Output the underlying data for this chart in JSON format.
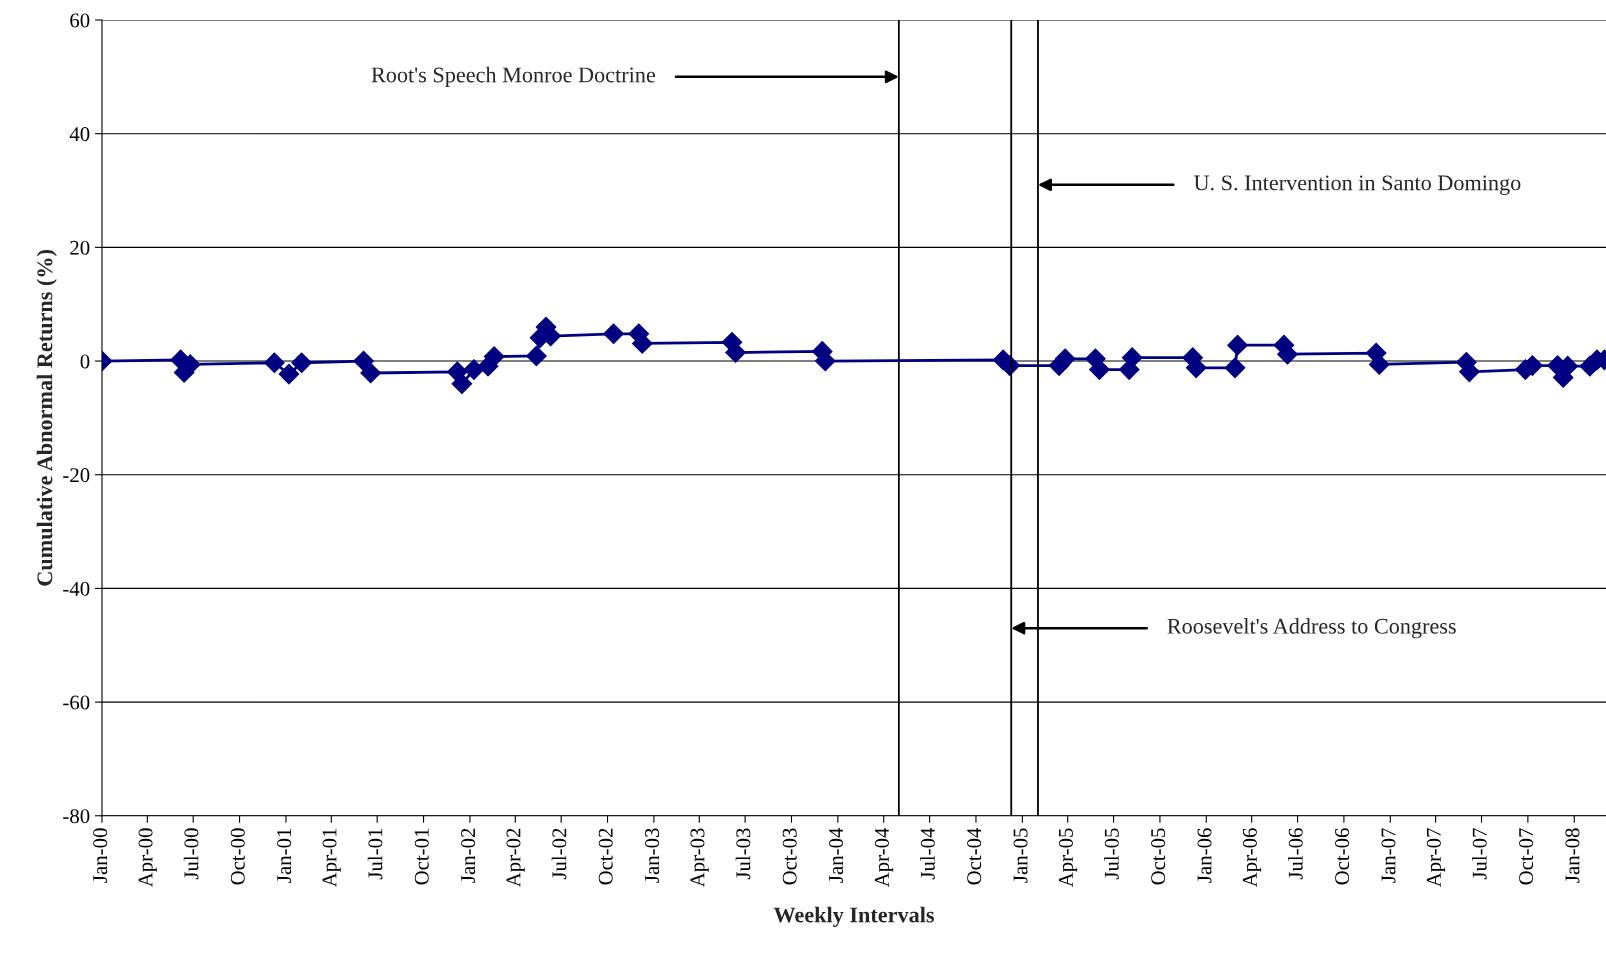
{
  "chart_data": {
    "type": "line",
    "xlabel": "Weekly Intervals",
    "ylabel": "Cumulative Abnormal Returns (%)",
    "x": [
      "1900-01-01",
      "1900-06-06",
      "1900-06-13",
      "1900-06-25",
      "1900-12-09",
      "1901-01-07",
      "1901-02-01",
      "1901-06-04",
      "1901-06-18",
      "1901-12-07",
      "1901-12-16",
      "1902-01-09",
      "1902-02-06",
      "1902-02-18",
      "1902-05-13",
      "1902-05-20",
      "1902-06-01",
      "1902-06-10",
      "1902-10-13",
      "1902-12-02",
      "1902-12-09",
      "1903-06-05",
      "1903-06-12",
      "1903-12-01",
      "1903-12-07",
      "1904-11-24",
      "1904-12-07",
      "1905-03-15",
      "1905-03-27",
      "1905-05-26",
      "1905-06-03",
      "1905-08-01",
      "1905-08-07",
      "1905-12-05",
      "1905-12-12",
      "1906-02-27",
      "1906-03-04",
      "1906-06-04",
      "1906-06-11",
      "1906-12-04",
      "1906-12-10",
      "1907-06-01",
      "1907-06-07",
      "1907-09-26",
      "1907-10-10",
      "1907-11-29",
      "1907-12-10",
      "1907-12-19",
      "1908-02-01",
      "1908-02-15",
      "1908-03-01"
    ],
    "series": [
      {
        "color": "#000080",
        "values": [
          0,
          0.2,
          -2,
          -0.6,
          -0.3,
          -2.3,
          -0.3,
          0,
          -2.1,
          -1.9,
          -4,
          -1.5,
          -0.9,
          0.8,
          0.9,
          4.1,
          6,
          4.4,
          4.8,
          4.8,
          3.1,
          3.3,
          1.5,
          1.7,
          0,
          0.2,
          -0.8,
          -0.8,
          0.4,
          0.4,
          -1.5,
          -1.5,
          0.6,
          0.6,
          -1.2,
          -1.2,
          2.8,
          2.8,
          1.2,
          1.4,
          -0.6,
          -0.2,
          -1.9,
          -1.5,
          -0.8,
          -0.8,
          -2.9,
          -0.9,
          -0.9,
          0.2,
          0.2
        ]
      }
    ],
    "marker": "diamond",
    "line_style": "solid",
    "grid": "y",
    "legend": false,
    "ylim": [
      -80,
      60
    ],
    "yticks": [
      -80,
      -60,
      -40,
      -20,
      0,
      20,
      40,
      60
    ],
    "xlim": [
      "1900-01-01",
      "1908-03-04"
    ],
    "xticks": [
      {
        "value": "1900-01-01",
        "label": "Jan-00"
      },
      {
        "value": "1900-04-01",
        "label": "Apr-00"
      },
      {
        "value": "1900-07-01",
        "label": "Jul-00"
      },
      {
        "value": "1900-10-01",
        "label": "Oct-00"
      },
      {
        "value": "1901-01-01",
        "label": "Jan-01"
      },
      {
        "value": "1901-04-01",
        "label": "Apr-01"
      },
      {
        "value": "1901-07-01",
        "label": "Jul-01"
      },
      {
        "value": "1901-10-01",
        "label": "Oct-01"
      },
      {
        "value": "1902-01-01",
        "label": "Jan-02"
      },
      {
        "value": "1902-04-01",
        "label": "Apr-02"
      },
      {
        "value": "1902-07-01",
        "label": "Jul-02"
      },
      {
        "value": "1902-10-01",
        "label": "Oct-02"
      },
      {
        "value": "1903-01-01",
        "label": "Jan-03"
      },
      {
        "value": "1903-04-01",
        "label": "Apr-03"
      },
      {
        "value": "1903-07-01",
        "label": "Jul-03"
      },
      {
        "value": "1903-10-01",
        "label": "Oct-03"
      },
      {
        "value": "1904-01-01",
        "label": "Jan-04"
      },
      {
        "value": "1904-04-01",
        "label": "Apr-04"
      },
      {
        "value": "1904-07-01",
        "label": "Jul-04"
      },
      {
        "value": "1904-10-01",
        "label": "Oct-04"
      },
      {
        "value": "1905-01-01",
        "label": "Jan-05"
      },
      {
        "value": "1905-04-01",
        "label": "Apr-05"
      },
      {
        "value": "1905-07-01",
        "label": "Jul-05"
      },
      {
        "value": "1905-10-01",
        "label": "Oct-05"
      },
      {
        "value": "1906-01-01",
        "label": "Jan-06"
      },
      {
        "value": "1906-04-01",
        "label": "Apr-06"
      },
      {
        "value": "1906-07-01",
        "label": "Jul-06"
      },
      {
        "value": "1906-10-01",
        "label": "Oct-06"
      },
      {
        "value": "1907-01-01",
        "label": "Jan-07"
      },
      {
        "value": "1907-04-01",
        "label": "Apr-07"
      },
      {
        "value": "1907-07-01",
        "label": "Jul-07"
      },
      {
        "value": "1907-10-01",
        "label": "Oct-07"
      },
      {
        "value": "1908-01-01",
        "label": "Jan-08"
      }
    ],
    "ref_lines": [
      {
        "axis": "x",
        "value": "1904-05-01",
        "color": "#000000",
        "line_style": "solid"
      },
      {
        "axis": "x",
        "value": "1904-12-10",
        "color": "#000000",
        "line_style": "solid"
      },
      {
        "axis": "x",
        "value": "1905-02-01",
        "color": "#000000",
        "line_style": "solid"
      }
    ],
    "annotations": [
      {
        "text": "Root's Speech Monroe Doctrine",
        "x": "1904-05-01",
        "y": 50
      },
      {
        "text": "U. S. Intervention in Santo Domingo",
        "x": "1905-02-01",
        "y": 31
      },
      {
        "text": "Roosevelt's Address to Congress",
        "x": "1904-12-10",
        "y": -47
      }
    ]
  }
}
